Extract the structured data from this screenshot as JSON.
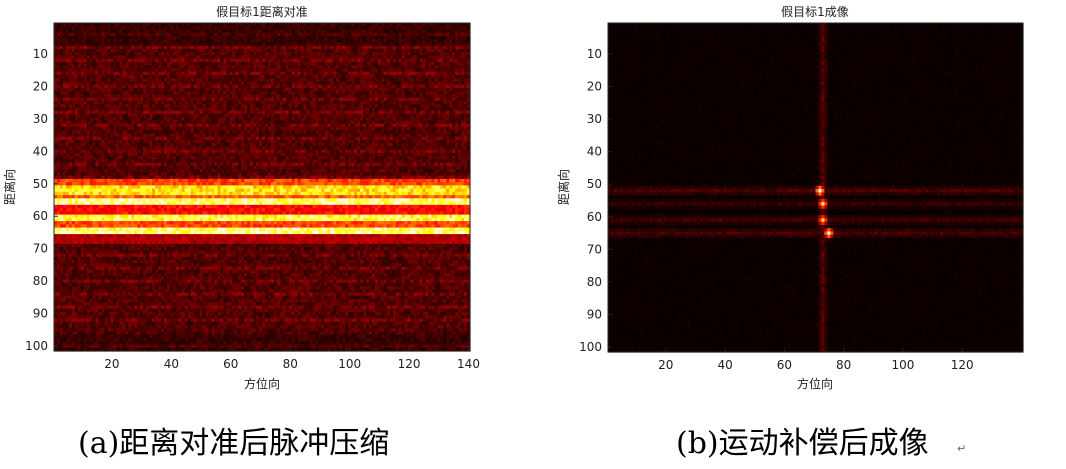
{
  "chart_data": [
    {
      "type": "heatmap",
      "title": "假目标1距离对准",
      "xlabel": "方位向",
      "ylabel": "距离向",
      "xlim": [
        0.5,
        140.5
      ],
      "ylim": [
        0.5,
        101.5
      ],
      "y_direction": "reversed",
      "xticks": [
        20,
        40,
        60,
        80,
        100,
        120,
        140
      ],
      "yticks": [
        10,
        20,
        30,
        40,
        50,
        60,
        70,
        80,
        90,
        100
      ],
      "colormap": "hot",
      "grid": false,
      "n_cols": 140,
      "n_rows": 101,
      "background_level": 0.12,
      "bands": [
        {
          "row_start": 49,
          "row_end": 50,
          "level": 0.55
        },
        {
          "row_start": 51,
          "row_end": 53,
          "level": 0.85
        },
        {
          "row_start": 54,
          "row_end": 54,
          "level": 0.6
        },
        {
          "row_start": 55,
          "row_end": 56,
          "level": 1.0
        },
        {
          "row_start": 57,
          "row_end": 59,
          "level": 0.45
        },
        {
          "row_start": 60,
          "row_end": 61,
          "level": 0.95
        },
        {
          "row_start": 62,
          "row_end": 63,
          "level": 0.55
        },
        {
          "row_start": 64,
          "row_end": 65,
          "level": 1.0
        },
        {
          "row_start": 66,
          "row_end": 68,
          "level": 0.3
        }
      ],
      "caption": "(a)距离对准后脉冲压缩"
    },
    {
      "type": "heatmap",
      "title": "假目标1成像",
      "xlabel": "方位向",
      "ylabel": "距离向",
      "xlim": [
        0.5,
        140.5
      ],
      "ylim": [
        0.5,
        101.5
      ],
      "y_direction": "reversed",
      "xticks": [
        20,
        40,
        60,
        80,
        100,
        120
      ],
      "yticks": [
        10,
        20,
        30,
        40,
        50,
        60,
        70,
        80,
        90,
        100
      ],
      "colormap": "hot",
      "grid": false,
      "n_cols": 140,
      "n_rows": 101,
      "background_level": 0.02,
      "points": [
        {
          "x": 72,
          "y": 52,
          "value": 1.0
        },
        {
          "x": 73,
          "y": 56,
          "value": 0.85
        },
        {
          "x": 73,
          "y": 61,
          "value": 0.8
        },
        {
          "x": 75,
          "y": 65,
          "value": 0.95
        }
      ],
      "streaks": [
        {
          "orientation": "row",
          "at": 52,
          "level": 0.14
        },
        {
          "orientation": "row",
          "at": 56,
          "level": 0.1
        },
        {
          "orientation": "row",
          "at": 61,
          "level": 0.12
        },
        {
          "orientation": "row",
          "at": 65,
          "level": 0.14
        },
        {
          "orientation": "col",
          "at": 73,
          "level": 0.16
        }
      ],
      "caption": "(b)运动补偿后成像"
    }
  ],
  "paragraph_mark": "↵"
}
